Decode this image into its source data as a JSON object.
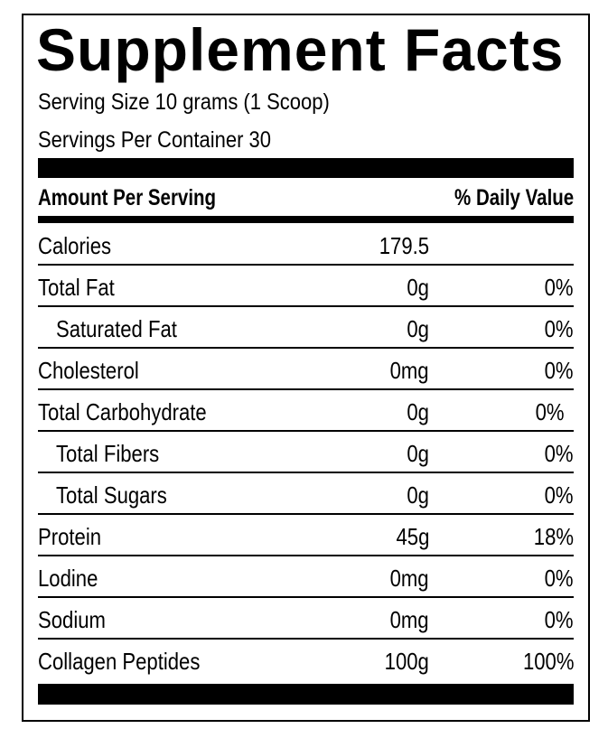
{
  "title": "Supplement Facts",
  "serving_size": "Serving Size 10 grams (1 Scoop)",
  "servings_per_container": "Servings Per Container 30",
  "header": {
    "left": "Amount Per Serving",
    "right": "% Daily Value"
  },
  "rows": [
    {
      "name": "Calories",
      "amount": "179.5"
    },
    {
      "name": "Total Fat",
      "amount": "0g",
      "dv": "0%"
    },
    {
      "name": "Saturated Fat",
      "amount": "0g",
      "dv": "0%"
    },
    {
      "name": "Cholesterol",
      "amount": "0mg",
      "dv": "0%"
    },
    {
      "name": "Total Carbohydrate",
      "amount": "0g",
      "dv": "0%"
    },
    {
      "name": "Total Fibers",
      "amount": "0g",
      "dv": "0%"
    },
    {
      "name": "Total Sugars",
      "amount": "0g",
      "dv": "0%"
    },
    {
      "name": "Protein",
      "amount": "45g",
      "dv": "18%"
    },
    {
      "name": "Lodine",
      "amount": "0mg",
      "dv": "0%"
    },
    {
      "name": "Sodium",
      "amount": "0mg",
      "dv": "0%"
    },
    {
      "name": "Collagen Peptides",
      "amount": "100g",
      "dv": "100%"
    }
  ]
}
